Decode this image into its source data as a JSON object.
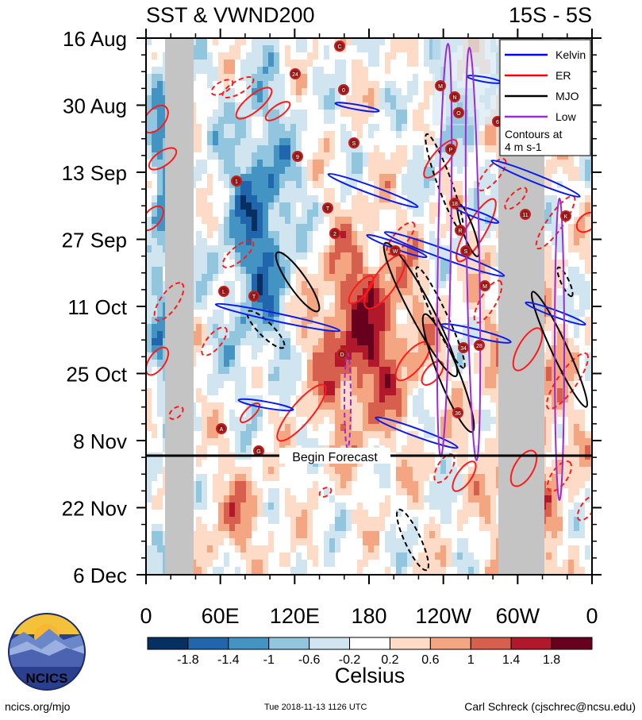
{
  "chart_data": {
    "type": "heatmap",
    "title_left": "SST & VWND200",
    "title_right": "15S - 5S",
    "y_ticks": [
      "16 Aug",
      "30 Aug",
      "13 Sep",
      "27 Sep",
      "11 Oct",
      "25 Oct",
      "8 Nov",
      "22 Nov",
      "6 Dec"
    ],
    "x_ticks": [
      "0",
      "60E",
      "120E",
      "180",
      "120W",
      "60W",
      "0"
    ],
    "forecast_label": "Begin Forecast",
    "legend": {
      "items": [
        {
          "name": "Kelvin",
          "color": "#0000ff"
        },
        {
          "name": "ER",
          "color": "#ff0000"
        },
        {
          "name": "MJO",
          "color": "#000000"
        },
        {
          "name": "Low",
          "color": "#9a2bd6"
        }
      ],
      "note_line1": "Contours at",
      "note_line2": "4 m s-1"
    },
    "colorbar": {
      "label": "Celsius",
      "tick_labels": [
        "-1.8",
        "-1.4",
        "-1",
        "-0.6",
        "-0.2",
        "0.2",
        "0.6",
        "1",
        "1.4",
        "1.8"
      ],
      "colors": [
        "#053061",
        "#2166ac",
        "#4393c3",
        "#92c5de",
        "#d1e5f0",
        "#ffffff",
        "#fddbc7",
        "#f4a582",
        "#d6604d",
        "#b2182b",
        "#67001f"
      ]
    },
    "storm_labels": [
      "C",
      "24",
      "0",
      "M",
      "N",
      "O",
      "6",
      "P",
      "S",
      "1",
      "9",
      "T",
      "18",
      "R",
      "S",
      "W",
      "L",
      "T",
      "M",
      "11",
      "K",
      "2",
      "34",
      "28",
      "D",
      "36",
      "A",
      "G"
    ]
  },
  "logo_text": "NCICS",
  "footer": {
    "left": "ncics.org/mjo",
    "center": "Tue 2018-11-13 1126 UTC",
    "right": "Carl Schreck (cjschrec@ncsu.edu)"
  }
}
